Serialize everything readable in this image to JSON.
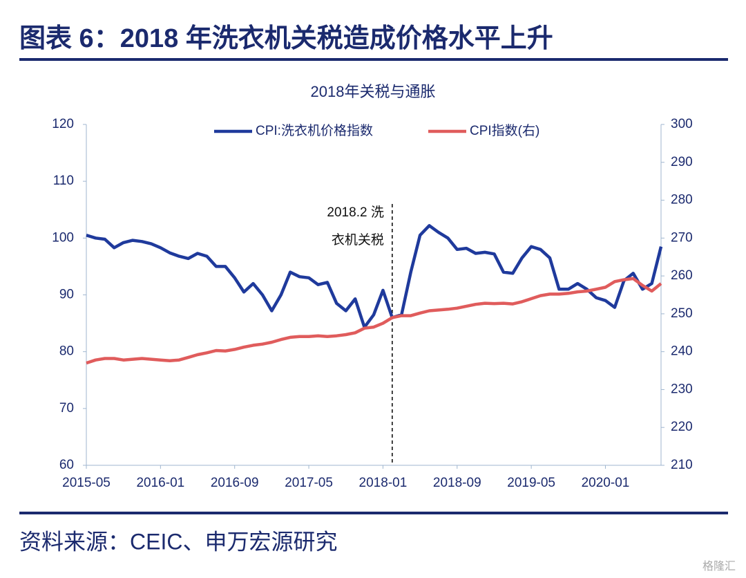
{
  "header": {
    "title": "图表 6：2018 年洗衣机关税造成价格水平上升"
  },
  "source": "资料来源：CEIC、申万宏源研究",
  "watermark": "格隆汇",
  "chart_data": {
    "type": "line",
    "title": "2018年关税与通胀",
    "categories": [
      "2015-05",
      null,
      null,
      null,
      null,
      null,
      null,
      null,
      "2016-01",
      null,
      null,
      null,
      null,
      null,
      null,
      null,
      "2016-09",
      null,
      null,
      null,
      null,
      null,
      null,
      null,
      "2017-05",
      null,
      null,
      null,
      null,
      null,
      null,
      null,
      "2018-01",
      null,
      null,
      null,
      null,
      null,
      null,
      null,
      "2018-09",
      null,
      null,
      null,
      null,
      null,
      null,
      null,
      "2019-05",
      null,
      null,
      null,
      null,
      null,
      null,
      null,
      "2020-01",
      null,
      null,
      null,
      null,
      null,
      null
    ],
    "series": [
      {
        "name": "CPI:洗衣机价格指数",
        "color": "#1f3a9c",
        "axis": "y",
        "values": [
          100.5,
          100,
          99.8,
          98.3,
          99.2,
          99.6,
          99.4,
          99,
          98.3,
          97.4,
          96.8,
          96.4,
          97.3,
          96.8,
          95,
          95,
          93,
          90.5,
          92,
          90,
          87.2,
          90,
          94,
          93.2,
          93,
          91.8,
          92.2,
          88.5,
          87.2,
          89.3,
          84.3,
          86.5,
          90.8,
          86,
          86.5,
          94,
          100.5,
          102.2,
          101,
          100,
          98,
          98.2,
          97.3,
          97.5,
          97.2,
          94,
          93.8,
          96.5,
          98.5,
          98,
          96.5,
          91,
          91,
          92,
          91,
          89.5,
          89,
          87.8,
          92.5,
          93.8,
          91,
          92,
          98.5
        ]
      },
      {
        "name": "CPI指数(右)",
        "color": "#e05c5c",
        "axis": "y2",
        "values": [
          237,
          237.8,
          238.2,
          238.2,
          237.8,
          238,
          238.2,
          238,
          237.8,
          237.6,
          237.8,
          238.5,
          239.2,
          239.7,
          240.3,
          240.2,
          240.6,
          241.2,
          241.7,
          242,
          242.5,
          243.2,
          243.8,
          244,
          244,
          244.2,
          244,
          244.2,
          244.5,
          245,
          246.2,
          246.5,
          247.5,
          249,
          249.5,
          249.5,
          250.2,
          250.8,
          251,
          251.2,
          251.5,
          252,
          252.5,
          252.8,
          252.7,
          252.8,
          252.6,
          253.2,
          254,
          254.8,
          255.2,
          255.2,
          255.4,
          255.8,
          256,
          256.5,
          257,
          258.5,
          259,
          259.3,
          257.5,
          256,
          258
        ]
      }
    ],
    "ylim": [
      60,
      120
    ],
    "yticks": [
      60,
      70,
      80,
      90,
      100,
      110,
      120
    ],
    "y2lim": [
      210,
      300
    ],
    "y2ticks": [
      210,
      220,
      230,
      240,
      250,
      260,
      270,
      280,
      290,
      300
    ],
    "annotation": [
      "2018.2 洗",
      "衣机关税"
    ],
    "legend": "top"
  }
}
